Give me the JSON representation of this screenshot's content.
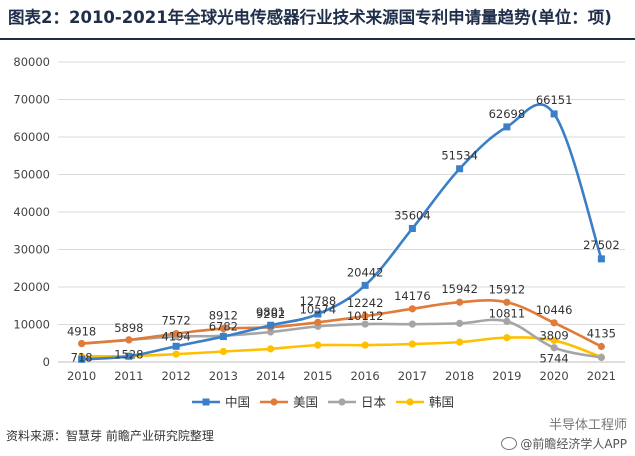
{
  "title": "图表2：2010-2021年全球光电传感器行业技术来源国专利申请量趋势(单位：项)",
  "source": "资料来源：智慧芽 前瞻产业研究院整理",
  "watermark_top": "半导体工程师",
  "watermark_bottom": "@前瞻经济学人APP",
  "colors": {
    "title": "#1f2f4a",
    "china": "#3a7fc8",
    "usa": "#e07b39",
    "japan": "#a5a5a5",
    "korea": "#ffc000",
    "grid": "#d9d9d9"
  },
  "chart_data": {
    "type": "line",
    "title": "",
    "xlabel": "",
    "ylabel": "",
    "categories": [
      "2010",
      "2011",
      "2012",
      "2013",
      "2014",
      "2015",
      "2016",
      "2017",
      "2018",
      "2019",
      "2020",
      "2021"
    ],
    "ylim": [
      0,
      80000
    ],
    "yticks": [
      0,
      10000,
      20000,
      30000,
      40000,
      50000,
      60000,
      70000,
      80000
    ],
    "grid": true,
    "smooth": true,
    "legend_position": "bottom",
    "series": [
      {
        "name": "中国",
        "color": "#3a7fc8",
        "marker": "square",
        "values": [
          718,
          1528,
          4194,
          6782,
          9801,
          12788,
          20442,
          35604,
          51534,
          62698,
          66151,
          27502
        ],
        "labels": [
          "718",
          "1528",
          "4194",
          "6782",
          "9801",
          "12788",
          "20442",
          "35604",
          "51534",
          "62698",
          "66151",
          "27502"
        ]
      },
      {
        "name": "美国",
        "color": "#e07b39",
        "marker": "circle",
        "values": [
          4918,
          5898,
          7572,
          8912,
          9282,
          10574,
          12242,
          14176,
          15942,
          15912,
          10446,
          4135
        ],
        "labels": [
          "4918",
          "5898",
          "7572",
          "8912",
          "9282",
          "10574",
          "12242",
          "14176",
          "15942",
          "15912",
          "10446",
          "4135"
        ]
      },
      {
        "name": "日本",
        "color": "#a5a5a5",
        "marker": "circle",
        "values": [
          4918,
          5898,
          6782,
          7000,
          8000,
          9500,
          10112,
          10100,
          10300,
          10811,
          3809,
          1200
        ],
        "labels": [
          null,
          null,
          null,
          null,
          null,
          null,
          "10112",
          null,
          null,
          "10811",
          "3809",
          null
        ]
      },
      {
        "name": "韩国",
        "color": "#ffc000",
        "marker": "circle",
        "values": [
          1500,
          1600,
          2100,
          2800,
          3500,
          4500,
          4500,
          4800,
          5300,
          6500,
          5744,
          1300
        ],
        "labels": [
          null,
          null,
          null,
          null,
          null,
          null,
          null,
          null,
          null,
          null,
          "5744",
          null
        ]
      }
    ]
  }
}
